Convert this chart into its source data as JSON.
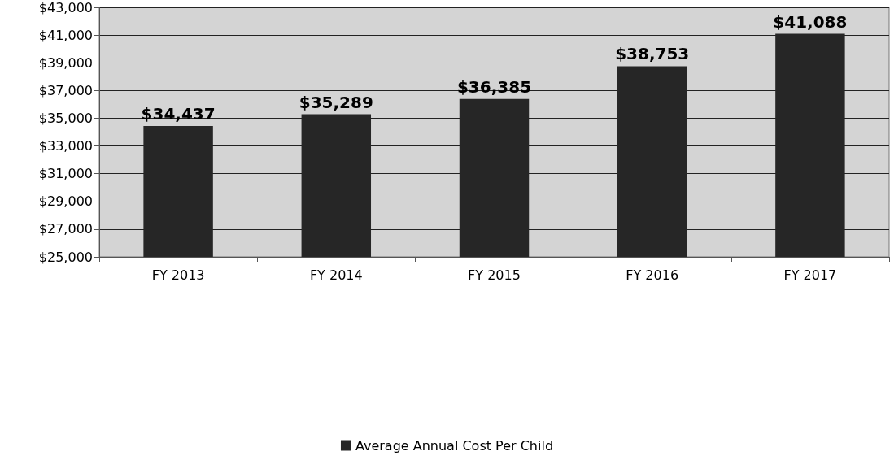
{
  "chart_data": {
    "type": "bar",
    "categories": [
      "FY 2013",
      "FY 2014",
      "FY 2015",
      "FY 2016",
      "FY 2017"
    ],
    "series": [
      {
        "name": "Average Annual Cost Per Child",
        "color": "#262626",
        "values": [
          34437,
          35289,
          36385,
          38753,
          41088
        ],
        "value_labels": [
          "$34,437",
          "$35,289",
          "$36,385",
          "$38,753",
          "$41,088"
        ]
      }
    ],
    "ylim": [
      25000,
      43000
    ],
    "yticks": [
      {
        "value": 25000,
        "label": "$25,000"
      },
      {
        "value": 27000,
        "label": "$27,000"
      },
      {
        "value": 29000,
        "label": "$29,000"
      },
      {
        "value": 31000,
        "label": "$31,000"
      },
      {
        "value": 33000,
        "label": "$33,000"
      },
      {
        "value": 35000,
        "label": "$35,000"
      },
      {
        "value": 37000,
        "label": "$37,000"
      },
      {
        "value": 39000,
        "label": "$39,000"
      },
      {
        "value": 41000,
        "label": "$41,000"
      },
      {
        "value": 43000,
        "label": "$43,000"
      }
    ],
    "grid": "y",
    "legend": "bottom"
  }
}
